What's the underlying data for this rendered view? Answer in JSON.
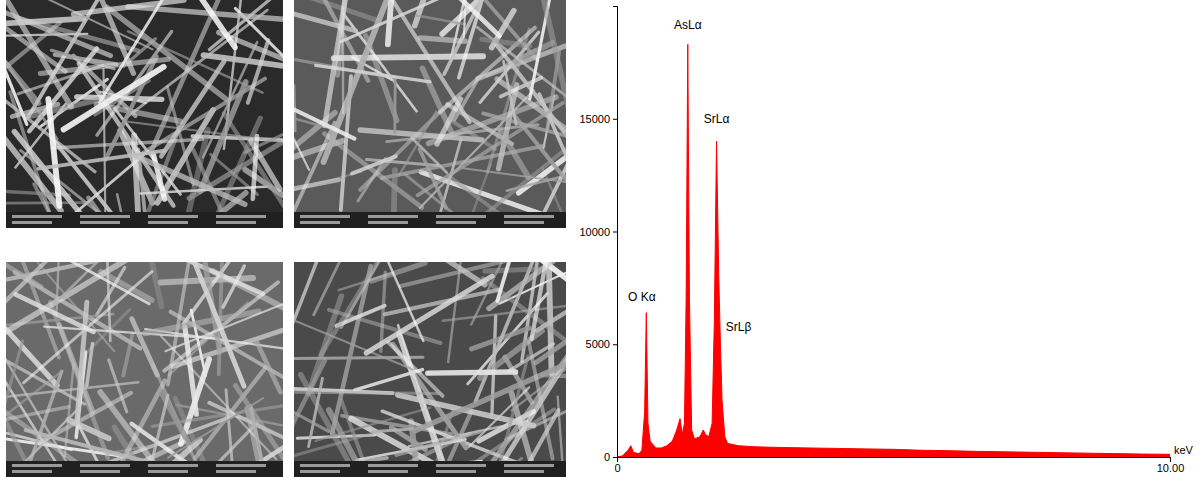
{
  "chart_data": {
    "type": "area",
    "x_label": "keV",
    "x": [
      0.0,
      0.1,
      0.2,
      0.25,
      0.3,
      0.4,
      0.45,
      0.5,
      0.53,
      0.56,
      0.6,
      0.7,
      0.8,
      0.9,
      1.0,
      1.08,
      1.14,
      1.18,
      1.22,
      1.25,
      1.28,
      1.31,
      1.35,
      1.4,
      1.5,
      1.56,
      1.6,
      1.66,
      1.72,
      1.76,
      1.8,
      1.84,
      1.87,
      1.9,
      1.95,
      2.0,
      2.2,
      2.5,
      3.0,
      3.5,
      4.0,
      4.5,
      5.0,
      5.5,
      6.0,
      6.5,
      7.0,
      7.5,
      8.0,
      8.5,
      9.0,
      9.5,
      10.0
    ],
    "values": [
      0,
      50,
      300,
      500,
      200,
      150,
      300,
      2000,
      6400,
      1500,
      700,
      400,
      400,
      500,
      700,
      1200,
      1700,
      1000,
      1500,
      7000,
      18300,
      7000,
      1200,
      800,
      900,
      1200,
      1000,
      900,
      1500,
      6000,
      14000,
      8000,
      5000,
      2500,
      900,
      600,
      500,
      450,
      420,
      400,
      380,
      360,
      340,
      300,
      280,
      250,
      230,
      210,
      190,
      170,
      150,
      130,
      120
    ],
    "color": "#ff0000",
    "xlim": [
      0,
      10
    ],
    "xticks": [
      0,
      {
        "value": 10,
        "label": "10.00"
      }
    ],
    "ylim": [
      0,
      20000
    ],
    "yticks": [
      0,
      5000,
      10000,
      15000
    ],
    "grid": false,
    "annotations": [
      {
        "text": "O Kα",
        "x": 0.45,
        "y": 6900
      },
      {
        "text": "AsLα",
        "x": 1.28,
        "y": 19000
      },
      {
        "text": "SrLα",
        "x": 1.8,
        "y": 14800
      },
      {
        "text": "SrLβ",
        "x": 2.2,
        "y": 5600
      }
    ]
  }
}
